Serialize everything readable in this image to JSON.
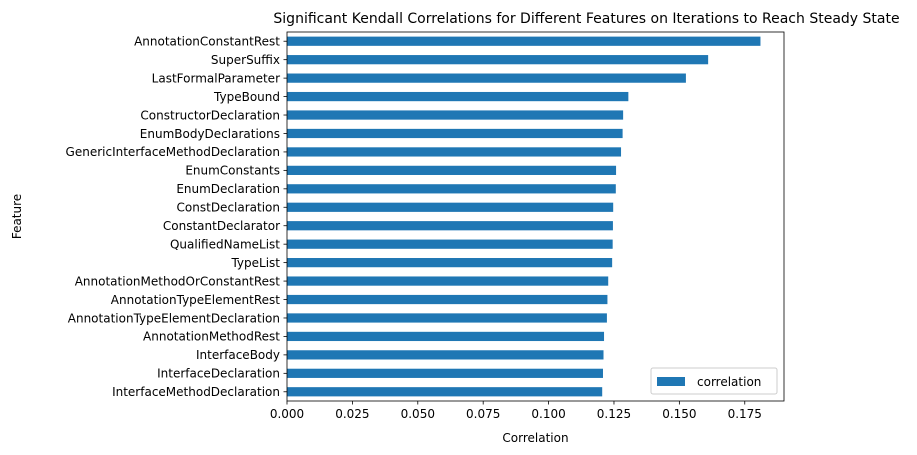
{
  "chart_data": {
    "type": "bar",
    "orientation": "horizontal",
    "title": "Significant Kendall Correlations for Different Features on Iterations to Reach Steady State",
    "xlabel": "Correlation",
    "ylabel": "Feature",
    "xlim": [
      0,
      0.19
    ],
    "xticks": [
      "0.000",
      "0.025",
      "0.050",
      "0.075",
      "0.100",
      "0.125",
      "0.150",
      "0.175"
    ],
    "grid": false,
    "legend_position": "lower right",
    "bar_color": "#1f77b4",
    "series": [
      {
        "name": "correlation",
        "categories": [
          "AnnotationConstantRest",
          "SuperSuffix",
          "LastFormalParameter",
          "TypeBound",
          "ConstructorDeclaration",
          "EnumBodyDeclarations",
          "GenericInterfaceMethodDeclaration",
          "EnumConstants",
          "EnumDeclaration",
          "ConstDeclaration",
          "ConstantDeclarator",
          "QualifiedNameList",
          "TypeList",
          "AnnotationMethodOrConstantRest",
          "AnnotationTypeElementRest",
          "AnnotationTypeElementDeclaration",
          "AnnotationMethodRest",
          "InterfaceBody",
          "InterfaceDeclaration",
          "InterfaceMethodDeclaration"
        ],
        "values": [
          0.181,
          0.161,
          0.1525,
          0.1305,
          0.1285,
          0.1283,
          0.1277,
          0.1258,
          0.1257,
          0.1247,
          0.1246,
          0.1245,
          0.1243,
          0.1228,
          0.1225,
          0.1223,
          0.1212,
          0.121,
          0.1208,
          0.1205
        ]
      }
    ]
  }
}
